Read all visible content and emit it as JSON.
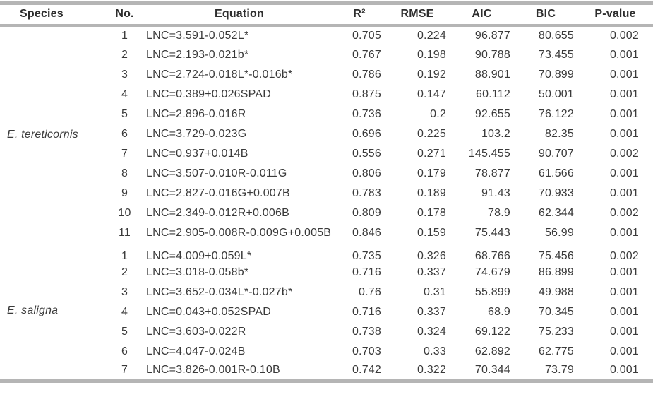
{
  "colors": {
    "rule": "#b5b5b5",
    "text": "#3a3a3a",
    "header_text": "#2e2e2e",
    "background": "#ffffff"
  },
  "chart_data": {
    "type": "table",
    "columns": [
      "Species",
      "No.",
      "Equation",
      "R²",
      "RMSE",
      "AIC",
      "BIC",
      "P-value"
    ],
    "groups": [
      {
        "species": "E. tereticornis",
        "rows": [
          [
            "1",
            "LNC=3.591-0.052L*",
            "0.705",
            "0.224",
            "96.877",
            "80.655",
            "0.002"
          ],
          [
            "2",
            "LNC=2.193-0.021b*",
            "0.767",
            "0.198",
            "90.788",
            "73.455",
            "0.001"
          ],
          [
            "3",
            "LNC=2.724-0.018L*-0.016b*",
            "0.786",
            "0.192",
            "88.901",
            "70.899",
            "0.001"
          ],
          [
            "4",
            "LNC=0.389+0.026SPAD",
            "0.875",
            "0.147",
            "60.112",
            "50.001",
            "0.001"
          ],
          [
            "5",
            "LNC=2.896-0.016R",
            "0.736",
            "0.2",
            "92.655",
            "76.122",
            "0.001"
          ],
          [
            "6",
            "LNC=3.729-0.023G",
            "0.696",
            "0.225",
            "103.2",
            "82.35",
            "0.001"
          ],
          [
            "7",
            "LNC=0.937+0.014B",
            "0.556",
            "0.271",
            "145.455",
            "90.707",
            "0.002"
          ],
          [
            "8",
            "LNC=3.507-0.010R-0.011G",
            "0.806",
            "0.179",
            "78.877",
            "61.566",
            "0.001"
          ],
          [
            "9",
            "LNC=2.827-0.016G+0.007B",
            "0.783",
            "0.189",
            "91.43",
            "70.933",
            "0.001"
          ],
          [
            "10",
            "LNC=2.349-0.012R+0.006B",
            "0.809",
            "0.178",
            "78.9",
            "62.344",
            "0.002"
          ],
          [
            "11",
            "LNC=2.905-0.008R-0.009G+0.005B",
            "0.846",
            "0.159",
            "75.443",
            "56.99",
            "0.001"
          ]
        ]
      },
      {
        "species": "E. saligna",
        "rows": [
          [
            "1",
            "LNC=4.009+0.059L*",
            "0.735",
            "0.326",
            "68.766",
            "75.456",
            "0.002"
          ],
          [
            "2",
            "LNC=3.018-0.058b*",
            "0.716",
            "0.337",
            "74.679",
            "86.899",
            "0.001"
          ],
          [
            "3",
            "LNC=3.652-0.034L*-0.027b*",
            "0.76",
            "0.31",
            "55.899",
            "49.988",
            "0.001"
          ],
          [
            "4",
            "LNC=0.043+0.052SPAD",
            "0.716",
            "0.337",
            "68.9",
            "70.345",
            "0.001"
          ],
          [
            "5",
            "LNC=3.603-0.022R",
            "0.738",
            "0.324",
            "69.122",
            "75.233",
            "0.001"
          ],
          [
            "6",
            "LNC=4.047-0.024B",
            "0.703",
            "0.33",
            "62.892",
            "62.775",
            "0.001"
          ],
          [
            "7",
            "LNC=3.826-0.001R-0.10B",
            "0.742",
            "0.322",
            "70.344",
            "73.79",
            "0.001"
          ]
        ]
      }
    ]
  }
}
